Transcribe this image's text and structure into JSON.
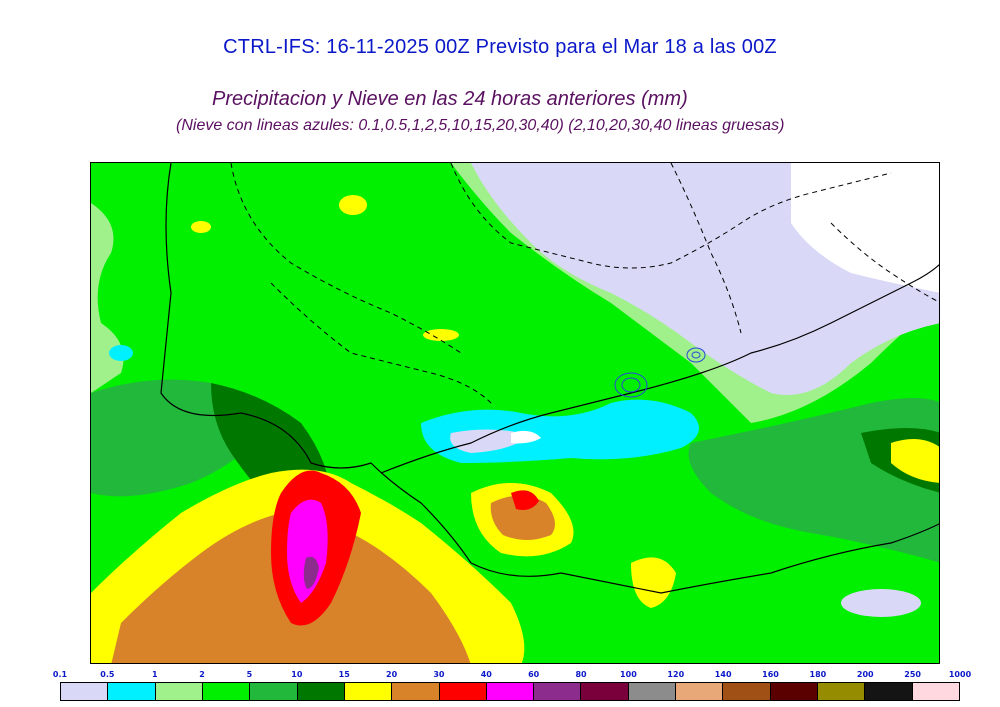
{
  "header": {
    "title": "CTRL-IFS: 16-11-2025 00Z Previsto para el Mar 18 a las 00Z",
    "subtitle": "Precipitacion y Nieve en las 24 horas anteriores (mm)",
    "note": "(Nieve con lineas azules: 0.1,0.5,1,2,5,10,15,20,30,40)  (2,10,20,30,40 lineas gruesas)"
  },
  "legend": {
    "ticks": [
      "0.1",
      "0.5",
      "1",
      "2",
      "5",
      "10",
      "15",
      "20",
      "30",
      "40",
      "60",
      "80",
      "100",
      "120",
      "140",
      "160",
      "180",
      "200",
      "250",
      "1000"
    ],
    "colors": [
      "#d9d9f7",
      "#00f0ff",
      "#a0f08c",
      "#00f000",
      "#22b83c",
      "#007800",
      "#ffff00",
      "#d8822a",
      "#ff0000",
      "#ff00ff",
      "#8c2c8c",
      "#7a003c",
      "#8c8c8c",
      "#e8a878",
      "#a05014",
      "#5a0000",
      "#968c00",
      "#141414",
      "#ffd8e0"
    ]
  },
  "map": {
    "ocean_color": "#22b83c",
    "land_moderate": "#00f000",
    "light_precip": "#a0f08c",
    "trace_precip": "#d9d9f7",
    "heavy_precip": "#ffff00",
    "very_heavy": "#d8822a",
    "extreme": "#ff0000",
    "peak": "#ff00ff"
  }
}
